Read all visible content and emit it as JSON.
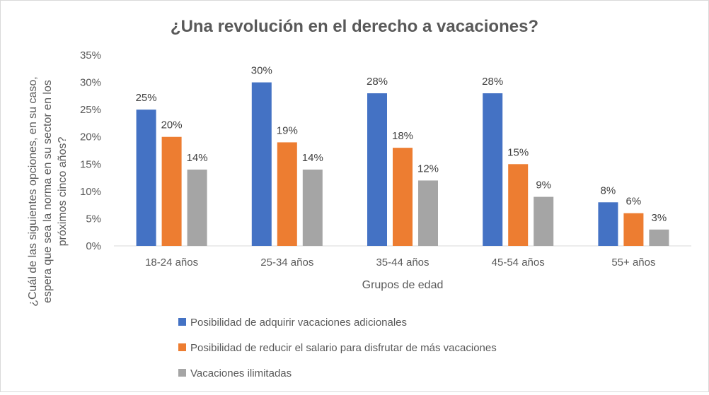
{
  "chart_data": {
    "type": "bar",
    "title": "¿Una revolución en el derecho a vacaciones?",
    "xlabel": "Grupos de edad",
    "ylabel_lines": [
      "¿Cuál de las siguientes opciones, en su caso,",
      "espera que sea la norma en su sector en los",
      "próximos cinco años?"
    ],
    "ylim": [
      0,
      35
    ],
    "yticks": [
      0,
      5,
      10,
      15,
      20,
      25,
      30,
      35
    ],
    "ytick_labels": [
      "0%",
      "5%",
      "10%",
      "15%",
      "20%",
      "25%",
      "30%",
      "35%"
    ],
    "categories": [
      "18-24 años",
      "25-34 años",
      "35-44 años",
      "45-54 años",
      "55+ años"
    ],
    "series": [
      {
        "name": "Posibilidad de adquirir vacaciones adicionales",
        "color": "#4472C4",
        "values": [
          25,
          30,
          28,
          28,
          8
        ],
        "labels": [
          "25%",
          "30%",
          "28%",
          "28%",
          "8%"
        ]
      },
      {
        "name": "Posibilidad de reducir el salario para disfrutar de más vacaciones",
        "color": "#ED7D31",
        "values": [
          20,
          19,
          18,
          15,
          6
        ],
        "labels": [
          "20%",
          "19%",
          "18%",
          "15%",
          "6%"
        ]
      },
      {
        "name": "Vacaciones ilimitadas",
        "color": "#A5A5A5",
        "values": [
          14,
          14,
          12,
          9,
          3
        ],
        "labels": [
          "14%",
          "14%",
          "12%",
          "9%",
          "3%"
        ]
      }
    ],
    "grid": false,
    "legend_position": "bottom"
  }
}
